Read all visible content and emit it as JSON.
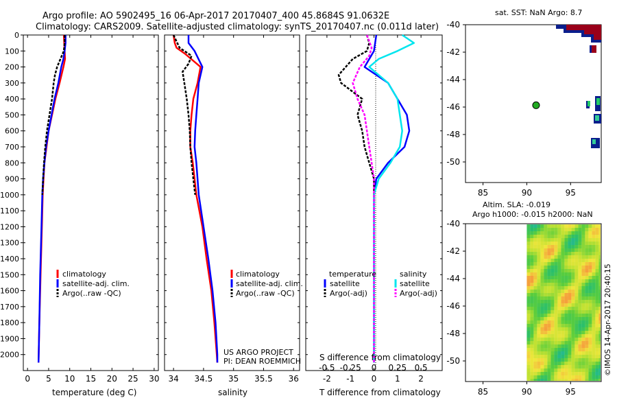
{
  "header": {
    "line1": "Argo profile: AO 5902495_16 06-Apr-2017 20170407_400 45.8684S 91.0632E",
    "line2": "Climatology: CARS2009. Satellite-adjusted climatology: synTS_20170407.nc (0.011d later)"
  },
  "colors": {
    "climatology": "#ff0000",
    "satellite": "#0000ff",
    "argo": "#000000",
    "sal_satellite": "#00e5ee",
    "sal_argo": "#ff00ff"
  },
  "chart_data": [
    {
      "type": "line",
      "name": "temperature-profile",
      "xlabel": "temperature (deg C)",
      "xlim": [
        -1,
        31
      ],
      "ylim": [
        2100,
        0
      ],
      "xticks": [
        "0",
        "5",
        "10",
        "15",
        "20",
        "25",
        "30"
      ],
      "xtick_values": [
        0,
        5,
        10,
        15,
        20,
        25,
        30
      ],
      "yticks": [
        "0",
        "100",
        "200",
        "300",
        "400",
        "500",
        "600",
        "700",
        "800",
        "900",
        "1000",
        "1100",
        "1200",
        "1300",
        "1400",
        "1500",
        "1600",
        "1700",
        "1800",
        "1900",
        "2000"
      ],
      "ytick_values": [
        0,
        100,
        200,
        300,
        400,
        500,
        600,
        700,
        800,
        900,
        1000,
        1100,
        1200,
        1300,
        1400,
        1500,
        1600,
        1700,
        1800,
        1900,
        2000
      ],
      "legend": [
        "climatology",
        "satellite-adj. clim.",
        "Argo(..raw -QC)"
      ],
      "series": [
        {
          "name": "climatology",
          "style": "solid",
          "depth": [
            0,
            50,
            100,
            150,
            200,
            300,
            400,
            500,
            600,
            700,
            800,
            900,
            1000,
            1200,
            1500,
            1800,
            2050
          ],
          "values": [
            8.6,
            8.7,
            8.8,
            8.9,
            8.5,
            7.6,
            6.6,
            5.8,
            5.0,
            4.5,
            4.0,
            3.8,
            3.6,
            3.4,
            3.1,
            2.8,
            2.6
          ]
        },
        {
          "name": "satellite-adj. clim.",
          "style": "solid",
          "depth": [
            0,
            50,
            100,
            150,
            200,
            300,
            400,
            500,
            600,
            700,
            800,
            900,
            1000,
            1200,
            1500,
            1800,
            2050
          ],
          "values": [
            9.0,
            9.0,
            8.8,
            8.5,
            8.0,
            7.3,
            6.4,
            5.7,
            5.0,
            4.4,
            4.0,
            3.7,
            3.5,
            3.3,
            3.0,
            2.8,
            2.6
          ]
        },
        {
          "name": "Argo(..raw -QC)",
          "style": "dashed",
          "depth": [
            0,
            50,
            100,
            150,
            200,
            250,
            300,
            400,
            500,
            600,
            700,
            800,
            900,
            1000
          ],
          "values": [
            8.8,
            8.8,
            8.6,
            7.8,
            7.0,
            6.5,
            6.2,
            5.8,
            5.2,
            4.6,
            4.2,
            3.9,
            3.7,
            3.5
          ]
        }
      ]
    },
    {
      "type": "line",
      "name": "salinity-profile",
      "xlabel": "salinity",
      "xlim": [
        33.85,
        36.1
      ],
      "ylim": [
        2100,
        0
      ],
      "xticks": [
        "34",
        "34.5",
        "35",
        "35.5",
        "36"
      ],
      "xtick_values": [
        34,
        34.5,
        35,
        35.5,
        36
      ],
      "legend": [
        "climatology",
        "satellite-adj. clim.",
        "Argo(..raw -QC)"
      ],
      "annotations": [
        "US ARGO PROJECT",
        "PI: DEAN ROEMMICH"
      ],
      "series": [
        {
          "name": "climatology",
          "style": "solid",
          "depth": [
            0,
            50,
            80,
            120,
            200,
            300,
            400,
            500,
            600,
            700,
            800,
            1000,
            1200,
            1400,
            1600,
            1800,
            2000,
            2050
          ],
          "values": [
            34.0,
            34.02,
            34.05,
            34.2,
            34.45,
            34.4,
            34.33,
            34.3,
            34.28,
            34.28,
            34.32,
            34.38,
            34.48,
            34.55,
            34.63,
            34.68,
            34.72,
            34.73
          ]
        },
        {
          "name": "satellite-adj. clim.",
          "style": "solid",
          "depth": [
            0,
            50,
            100,
            200,
            300,
            400,
            500,
            600,
            700,
            800,
            1000,
            1200,
            1400,
            1600,
            1800,
            2000,
            2050
          ],
          "values": [
            34.25,
            34.25,
            34.35,
            34.48,
            34.42,
            34.4,
            34.38,
            34.36,
            34.35,
            34.38,
            34.42,
            34.5,
            34.58,
            34.65,
            34.7,
            34.73,
            34.73
          ]
        },
        {
          "name": "Argo(..raw -QC)",
          "style": "dashed",
          "depth": [
            0,
            80,
            130,
            180,
            230,
            300,
            400,
            500,
            600,
            700,
            800,
            900,
            1000
          ],
          "values": [
            34.0,
            34.1,
            34.3,
            34.25,
            34.15,
            34.18,
            34.22,
            34.25,
            34.27,
            34.28,
            34.3,
            34.33,
            34.36
          ]
        }
      ]
    },
    {
      "type": "line",
      "name": "difference-profile",
      "xlabel": "T difference from climatology",
      "xlabel2": "S difference from climatology",
      "xlim": [
        -2.9,
        2.9
      ],
      "ylim": [
        2100,
        0
      ],
      "xticks": [
        "-2",
        "-1",
        "0",
        "1",
        "2"
      ],
      "xtick_values": [
        -2,
        -1,
        0,
        1,
        2
      ],
      "sticks": [
        "-0.5",
        "-0.25",
        "0",
        "0.25",
        "0.5"
      ],
      "stick_positions": [
        -2,
        -1,
        0,
        1,
        2
      ],
      "legend_heads": [
        "temperature",
        "salinity"
      ],
      "legend": [
        "satellite",
        "Argo(-adj)",
        "satellite",
        "Argo(-adj)"
      ],
      "series": [
        {
          "name": "temperature satellite",
          "style": "solid",
          "depth": [
            0,
            100,
            200,
            300,
            400,
            500,
            600,
            700,
            800,
            900,
            1000,
            1200,
            1500,
            1800,
            2050
          ],
          "values": [
            0.1,
            0.0,
            -0.4,
            0.6,
            1.0,
            1.4,
            1.5,
            1.3,
            0.6,
            0.1,
            0.0,
            0.0,
            0.0,
            0.0,
            0.0
          ]
        },
        {
          "name": "temperature Argo(-adj)",
          "style": "dashed",
          "depth": [
            0,
            50,
            100,
            150,
            200,
            250,
            300,
            400,
            500,
            600,
            700,
            800,
            900,
            1000
          ],
          "values": [
            -0.3,
            -0.2,
            -0.3,
            -0.9,
            -1.2,
            -1.5,
            -1.4,
            -0.5,
            -0.7,
            -0.5,
            -0.4,
            -0.2,
            0.0,
            0.0
          ]
        },
        {
          "name": "salinity satellite",
          "style": "solid",
          "depth": [
            0,
            50,
            100,
            150,
            200,
            300,
            400,
            500,
            600,
            700,
            800,
            900,
            1000,
            1200,
            1500,
            1800,
            2050
          ],
          "values": [
            1.2,
            1.7,
            1.0,
            0.2,
            -0.2,
            0.6,
            1.0,
            1.1,
            1.2,
            1.1,
            0.7,
            0.2,
            0.0,
            0.0,
            0.0,
            0.0,
            0.0
          ]
        },
        {
          "name": "salinity Argo(-adj)",
          "style": "dashed",
          "depth": [
            0,
            80,
            130,
            200,
            300,
            400,
            500,
            600,
            700,
            800,
            900,
            1000,
            1200,
            1500,
            1800,
            2050
          ],
          "values": [
            -0.3,
            -0.1,
            -0.2,
            -0.6,
            -0.9,
            -0.7,
            -0.4,
            -0.3,
            -0.2,
            -0.1,
            0.0,
            0.0,
            0.0,
            0.0,
            0.0,
            0.0
          ]
        }
      ]
    },
    {
      "type": "heatmap",
      "name": "sst-map",
      "title": "sat. SST: NaN Argo: 8.7",
      "xlim": [
        83,
        98.5
      ],
      "ylim": [
        -51.5,
        -40
      ],
      "xticks": [
        "85",
        "90",
        "95"
      ],
      "xtick_values": [
        85,
        90,
        95
      ],
      "yticks": [
        "-40",
        "-42",
        "-44",
        "-46",
        "-48",
        "-50"
      ],
      "ytick_values": [
        -40,
        -42,
        -44,
        -46,
        -48,
        -50
      ],
      "marker": {
        "lon": 91.06,
        "lat": -45.87
      }
    },
    {
      "type": "heatmap",
      "name": "sla-map",
      "title": "Altim. SLA: -0.019",
      "subtitle": "Argo h1000: -0.015 h2000: NaN",
      "xlim": [
        83,
        98.5
      ],
      "ylim": [
        -51.5,
        -40
      ],
      "xticks": [
        "85",
        "90",
        "95"
      ],
      "xtick_values": [
        85,
        90,
        95
      ],
      "yticks": [
        "-40",
        "-42",
        "-44",
        "-46",
        "-48",
        "-50"
      ],
      "ytick_values": [
        -40,
        -42,
        -44,
        -46,
        -48,
        -50
      ],
      "data_lon_start": 90
    }
  ],
  "footer": {
    "stamp": "©IMOS 14-Apr-2017 20:40:15"
  }
}
